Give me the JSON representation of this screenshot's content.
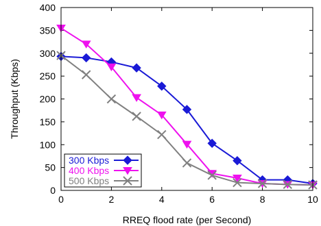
{
  "chart_data": {
    "type": "line",
    "xlabel": "RREQ flood rate (per Second)",
    "ylabel": "Throughput (Kbps)",
    "xlim": [
      0,
      10
    ],
    "ylim": [
      0,
      400
    ],
    "xticks": [
      0,
      2,
      4,
      6,
      8,
      10
    ],
    "yticks": [
      0,
      50,
      100,
      150,
      200,
      250,
      300,
      350,
      400
    ],
    "grid": false,
    "legend_position": "bottom-left",
    "x": [
      0,
      1,
      2,
      3,
      4,
      5,
      6,
      7,
      8,
      9,
      10
    ],
    "series": [
      {
        "name": "300 Kbps",
        "color": "#1a1ad6",
        "marker": "diamond",
        "values": [
          293,
          290,
          281,
          268,
          228,
          177,
          103,
          65,
          23,
          23,
          15
        ]
      },
      {
        "name": "400 Kbps",
        "color": "#ee11ee",
        "marker": "triangle-down",
        "values": [
          355,
          320,
          270,
          203,
          165,
          101,
          37,
          27,
          15,
          13,
          12
        ]
      },
      {
        "name": "500 Kbps",
        "color": "#808080",
        "marker": "x",
        "values": [
          295,
          253,
          200,
          162,
          122,
          60,
          33,
          17,
          15,
          13,
          12
        ]
      }
    ]
  }
}
